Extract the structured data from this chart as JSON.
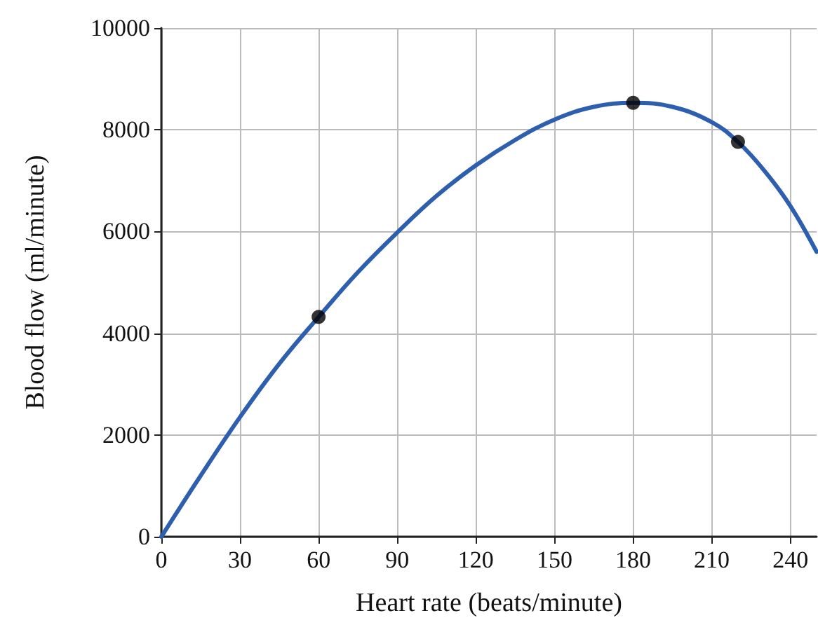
{
  "chart_data": {
    "type": "line",
    "xlabel": "Heart rate (beats/minute)",
    "ylabel": "Blood flow (ml/minute)",
    "xlim": [
      0,
      250
    ],
    "xticks": [
      0,
      30,
      60,
      90,
      120,
      150,
      180,
      210,
      240
    ],
    "ylim": [
      0,
      10000
    ],
    "yticks": [
      0,
      2000,
      4000,
      6000,
      8000,
      10000
    ],
    "grid": true,
    "line_style": "solid",
    "series": [
      {
        "color": "#2e5faf",
        "marker": "none",
        "x": [
          0,
          15,
          30,
          45,
          60,
          75,
          90,
          105,
          120,
          135,
          150,
          165,
          180,
          195,
          210,
          220,
          230,
          240,
          250
        ],
        "values": [
          0,
          1200,
          2350,
          3400,
          4320,
          5200,
          5980,
          6700,
          7300,
          7800,
          8200,
          8450,
          8530,
          8450,
          8150,
          7760,
          7200,
          6500,
          5600
        ]
      },
      {
        "type": "scatter",
        "color": "#000000",
        "marker": "circle",
        "x": [
          60,
          180,
          220
        ],
        "values": [
          4320,
          8530,
          7760
        ]
      }
    ]
  }
}
